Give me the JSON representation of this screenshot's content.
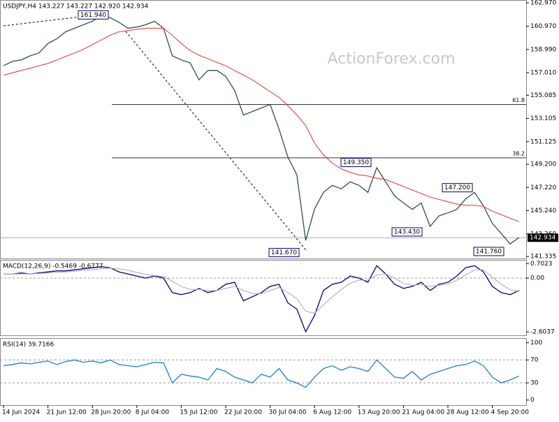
{
  "chart_data": [
    {
      "type": "line",
      "title": "USDJPY,H4  143.227 143.227 142.920 142.934",
      "watermark": "ActionForex.com",
      "categories": [
        "14 Jun 2024",
        null,
        null,
        null,
        null,
        "21 Jun 12:00",
        null,
        null,
        null,
        null,
        "28 Jun 20:00",
        null,
        null,
        null,
        null,
        "8 Jul 04:00",
        null,
        null,
        null,
        null,
        "15 Jul 12:00",
        null,
        null,
        null,
        null,
        "22 Jul 20:00",
        null,
        null,
        null,
        null,
        "30 Jul 04:00",
        null,
        null,
        null,
        null,
        "6 Aug 12:00",
        null,
        null,
        null,
        null,
        "13 Aug 20:00",
        null,
        null,
        null,
        null,
        "21 Aug 04:00",
        null,
        null,
        null,
        null,
        "28 Aug 12:00",
        null,
        null,
        null,
        null,
        "4 Sep 20:00",
        null,
        null,
        null
      ],
      "series": [
        {
          "color": "#2f4f4f",
          "values": [
            157.6,
            157.97,
            158.1,
            158.45,
            158.7,
            159.5,
            159.9,
            160.5,
            160.8,
            161.1,
            161.4,
            161.9,
            161.7,
            161.3,
            160.8,
            160.9,
            161.1,
            161.4,
            160.8,
            158.45,
            158.1,
            157.85,
            156.4,
            157.2,
            157.2,
            156.7,
            155.5,
            153.4,
            153.7,
            154.0,
            154.3,
            152.2,
            149.8,
            148.3,
            142.7,
            145.4,
            146.8,
            147.4,
            147.1,
            147.7,
            147.4,
            146.8,
            148.9,
            147.7,
            146.5,
            145.9,
            145.35,
            145.9,
            143.9,
            144.8,
            145.05,
            145.35,
            146.25,
            146.8,
            145.65,
            144.15,
            143.3,
            142.4,
            142.95
          ]
        },
        {
          "color": "#e0443c",
          "values": [
            156.8,
            157.0,
            157.2,
            157.4,
            157.6,
            157.8,
            158.1,
            158.4,
            158.7,
            159.0,
            159.4,
            159.8,
            160.2,
            160.5,
            160.6,
            160.7,
            160.8,
            160.8,
            160.8,
            160.2,
            159.5,
            158.9,
            158.5,
            158.2,
            157.9,
            157.6,
            157.2,
            156.8,
            156.4,
            155.9,
            155.4,
            154.9,
            154.2,
            153.4,
            152.5,
            151.0,
            150.0,
            149.3,
            148.8,
            148.5,
            148.3,
            148.2,
            148.0,
            147.9,
            147.6,
            147.3,
            147.0,
            146.7,
            146.4,
            146.2,
            146.0,
            145.8,
            145.7,
            145.7,
            145.6,
            145.2,
            144.9,
            144.6,
            144.3
          ]
        }
      ],
      "ylim": [
        141.16,
        163.21
      ],
      "yticks": [
        {
          "value": 162.97,
          "label": "162.970"
        },
        {
          "value": 160.97,
          "label": "160.970"
        },
        {
          "value": 158.99,
          "label": "158.990"
        },
        {
          "value": 157.01,
          "label": "157.010"
        },
        155.085,
        153.105,
        151.125,
        {
          "value": 149.2,
          "label": "149.200"
        },
        {
          "value": 147.22,
          "label": "147.220"
        },
        {
          "value": 145.24,
          "label": "145.240"
        },
        {
          "value": 143.26,
          "label": "143.260"
        },
        141.335
      ],
      "current": 142.934,
      "levels": [
        {
          "value": 154.3,
          "label": "61.8"
        },
        {
          "value": 149.75,
          "label": "38.2"
        }
      ],
      "annotations": [
        {
          "value": 161.94,
          "label": "161.940"
        },
        {
          "value": 149.35,
          "label": "149.350"
        },
        {
          "value": 147.2,
          "label": "147.200"
        },
        {
          "value": 143.43,
          "label": "143.430"
        },
        {
          "value": 141.67,
          "label": "141.670"
        },
        {
          "value": 141.76,
          "label": "141.760"
        }
      ]
    },
    {
      "type": "line",
      "title": "MACD(12,26,9) -0.5469 -0.6777",
      "series": [
        {
          "color": "#000080",
          "values": [
            0.2,
            0.2,
            0.25,
            0.2,
            0.25,
            0.3,
            0.35,
            0.35,
            0.4,
            0.45,
            0.5,
            0.55,
            0.5,
            0.3,
            0.2,
            0.1,
            0.0,
            0.1,
            0.0,
            -0.7,
            -0.8,
            -0.7,
            -0.5,
            -0.7,
            -0.6,
            -0.3,
            -0.2,
            -1.1,
            -0.9,
            -0.7,
            -0.4,
            -0.3,
            -1.2,
            -1.5,
            -2.6,
            -1.8,
            -0.6,
            -0.3,
            -0.2,
            0.1,
            0.0,
            -0.2,
            0.6,
            0.2,
            -0.3,
            -0.5,
            -0.4,
            -0.2,
            -0.6,
            -0.3,
            -0.2,
            0.1,
            0.5,
            0.6,
            0.3,
            -0.4,
            -0.7,
            -0.8,
            -0.6
          ]
        },
        {
          "color": "#b0b0b0",
          "values": [
            0.2,
            0.2,
            0.2,
            0.2,
            0.22,
            0.25,
            0.28,
            0.3,
            0.33,
            0.37,
            0.4,
            0.45,
            0.48,
            0.45,
            0.38,
            0.28,
            0.18,
            0.12,
            0.08,
            -0.15,
            -0.4,
            -0.55,
            -0.55,
            -0.6,
            -0.6,
            -0.5,
            -0.4,
            -0.6,
            -0.75,
            -0.75,
            -0.6,
            -0.45,
            -0.7,
            -1.0,
            -1.6,
            -1.7,
            -1.3,
            -0.9,
            -0.55,
            -0.25,
            -0.1,
            -0.1,
            0.15,
            0.2,
            0.0,
            -0.25,
            -0.35,
            -0.3,
            -0.4,
            -0.35,
            -0.3,
            -0.1,
            0.15,
            0.4,
            0.4,
            0.05,
            -0.3,
            -0.55,
            -0.65
          ]
        }
      ],
      "ylim": [
        -2.77,
        0.88
      ],
      "yticks": [
        0.7023,
        {
          "value": 0,
          "label": "0.00"
        },
        -2.6037
      ],
      "levels": [
        0
      ]
    },
    {
      "type": "line",
      "title": "RSI(14) 39.7166",
      "series": [
        {
          "color": "#1e7fd0",
          "values": [
            60,
            62,
            65,
            63,
            66,
            68,
            62,
            67,
            70,
            66,
            68,
            65,
            70,
            62,
            60,
            58,
            62,
            66,
            65,
            30,
            45,
            42,
            40,
            35,
            55,
            50,
            40,
            35,
            30,
            45,
            40,
            55,
            35,
            30,
            22,
            40,
            55,
            60,
            52,
            58,
            55,
            50,
            70,
            55,
            40,
            38,
            50,
            35,
            45,
            50,
            55,
            60,
            62,
            68,
            60,
            40,
            30,
            35,
            42
          ]
        }
      ],
      "ylim": [
        -9,
        108
      ],
      "yticks": [
        0,
        30,
        70,
        100
      ],
      "levels": [
        30,
        70
      ]
    }
  ]
}
